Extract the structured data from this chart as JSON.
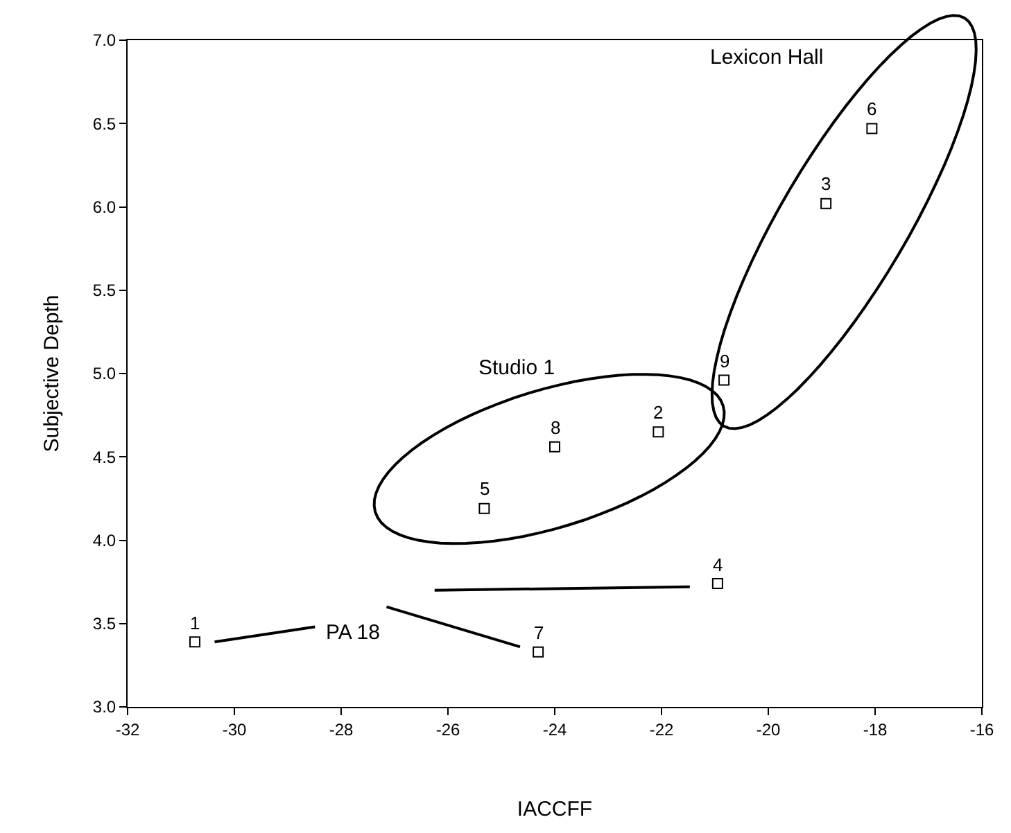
{
  "chart_data": {
    "type": "scatter",
    "xlabel": "IACCFF",
    "ylabel": "Subjective Depth",
    "x": [
      -30.74,
      -22.06,
      -18.92,
      -20.95,
      -25.32,
      -18.06,
      -24.31,
      -24.0,
      -20.83
    ],
    "series": [
      {
        "color": "#000000",
        "values": [
          3.39,
          4.65,
          6.02,
          3.74,
          4.19,
          6.47,
          3.33,
          4.56,
          4.96
        ]
      }
    ],
    "xlim": [
      -32,
      -16
    ],
    "ylim": [
      3,
      7
    ],
    "xticks": [
      -32,
      -30,
      -28,
      -26,
      -24,
      -22,
      -20,
      -18,
      -16
    ],
    "yticks": [
      {
        "value": 3,
        "label": "3.0"
      },
      {
        "value": 3.5,
        "label": "3.5"
      },
      {
        "value": 4,
        "label": "4.0"
      },
      {
        "value": 4.5,
        "label": "4.5"
      },
      {
        "value": 5,
        "label": "5.0"
      },
      {
        "value": 5.5,
        "label": "5.5"
      },
      {
        "value": 6,
        "label": "6.0"
      },
      {
        "value": 6.5,
        "label": "6.5"
      },
      {
        "value": 7,
        "label": "7.0"
      }
    ],
    "marker": "square",
    "annotations": [
      {
        "text": "1",
        "x": -30.74,
        "y": 3.39
      },
      {
        "text": "2",
        "x": -22.06,
        "y": 4.65
      },
      {
        "text": "3",
        "x": -18.92,
        "y": 6.02
      },
      {
        "text": "4",
        "x": -20.95,
        "y": 3.74
      },
      {
        "text": "5",
        "x": -25.32,
        "y": 4.19
      },
      {
        "text": "6",
        "x": -18.06,
        "y": 6.47
      },
      {
        "text": "7",
        "x": -24.31,
        "y": 3.33
      },
      {
        "text": "8",
        "x": -24.0,
        "y": 4.56
      },
      {
        "text": "9",
        "x": -20.83,
        "y": 4.96
      },
      "Lexicon Hall",
      "Studio 1",
      "PA 18"
    ]
  }
}
